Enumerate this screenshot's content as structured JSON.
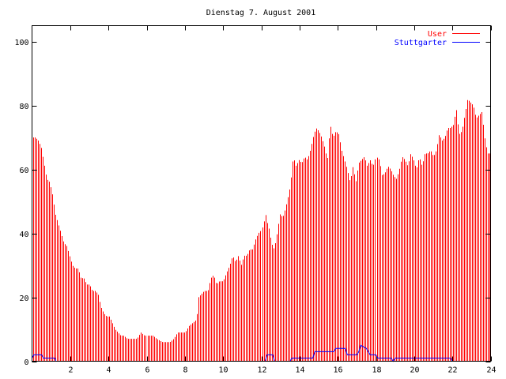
{
  "chart_data": {
    "type": "bar",
    "title": "Dienstag 7. August 2001",
    "xlabel": "",
    "ylabel": "",
    "xlim": [
      0,
      24
    ],
    "ylim": [
      0,
      105
    ],
    "xticks": [
      2,
      4,
      6,
      8,
      10,
      12,
      14,
      16,
      18,
      20,
      22,
      24
    ],
    "yticks": [
      0,
      20,
      40,
      60,
      80,
      100
    ],
    "grid": false,
    "legend_position": "top-right",
    "bar_color": "#ff0000",
    "sample_count": 288,
    "series": [
      {
        "name": "User",
        "color": "#ff0000",
        "style": "impulses",
        "points": [
          [
            0,
            70
          ],
          [
            0.15,
            70
          ],
          [
            0.3,
            69
          ],
          [
            0.45,
            67
          ],
          [
            0.6,
            62
          ],
          [
            0.75,
            57
          ],
          [
            0.9,
            56
          ],
          [
            1.05,
            52
          ],
          [
            1.2,
            46
          ],
          [
            1.35,
            43
          ],
          [
            1.5,
            40
          ],
          [
            1.65,
            37
          ],
          [
            1.8,
            36
          ],
          [
            1.95,
            33
          ],
          [
            2.1,
            30
          ],
          [
            2.25,
            29
          ],
          [
            2.4,
            29
          ],
          [
            2.55,
            26
          ],
          [
            2.7,
            26
          ],
          [
            2.85,
            24
          ],
          [
            3.0,
            24
          ],
          [
            3.15,
            22
          ],
          [
            3.3,
            22
          ],
          [
            3.45,
            21
          ],
          [
            3.6,
            17
          ],
          [
            3.75,
            15
          ],
          [
            3.9,
            14
          ],
          [
            4.05,
            14
          ],
          [
            4.2,
            12
          ],
          [
            4.35,
            10
          ],
          [
            4.5,
            9
          ],
          [
            4.65,
            8
          ],
          [
            4.8,
            8
          ],
          [
            5.0,
            7
          ],
          [
            5.5,
            7
          ],
          [
            5.6,
            8
          ],
          [
            5.7,
            9
          ],
          [
            5.9,
            8
          ],
          [
            6.3,
            8
          ],
          [
            6.5,
            7
          ],
          [
            6.8,
            6
          ],
          [
            7.2,
            6
          ],
          [
            7.4,
            7
          ],
          [
            7.6,
            9
          ],
          [
            7.8,
            9
          ],
          [
            8.0,
            9
          ],
          [
            8.2,
            11
          ],
          [
            8.4,
            12
          ],
          [
            8.6,
            13
          ],
          [
            8.7,
            20
          ],
          [
            8.85,
            21
          ],
          [
            9.0,
            22
          ],
          [
            9.2,
            22
          ],
          [
            9.35,
            26
          ],
          [
            9.5,
            27
          ],
          [
            9.65,
            24
          ],
          [
            9.8,
            25
          ],
          [
            10.0,
            25
          ],
          [
            10.2,
            28
          ],
          [
            10.35,
            30
          ],
          [
            10.5,
            33
          ],
          [
            10.65,
            31
          ],
          [
            10.8,
            33
          ],
          [
            10.95,
            30
          ],
          [
            11.1,
            33
          ],
          [
            11.25,
            33
          ],
          [
            11.4,
            35
          ],
          [
            11.55,
            35
          ],
          [
            11.7,
            38
          ],
          [
            11.85,
            40
          ],
          [
            12.0,
            41
          ],
          [
            12.1,
            43
          ],
          [
            12.2,
            46
          ],
          [
            12.3,
            43
          ],
          [
            12.4,
            41
          ],
          [
            12.5,
            37
          ],
          [
            12.65,
            35
          ],
          [
            12.8,
            40
          ],
          [
            12.95,
            46
          ],
          [
            13.1,
            45
          ],
          [
            13.25,
            48
          ],
          [
            13.4,
            52
          ],
          [
            13.5,
            55
          ],
          [
            13.65,
            64
          ],
          [
            13.8,
            61
          ],
          [
            13.95,
            63
          ],
          [
            14.1,
            62
          ],
          [
            14.25,
            64
          ],
          [
            14.4,
            63
          ],
          [
            14.55,
            66
          ],
          [
            14.7,
            70
          ],
          [
            14.85,
            73
          ],
          [
            15.0,
            72
          ],
          [
            15.15,
            70
          ],
          [
            15.3,
            67
          ],
          [
            15.45,
            63
          ],
          [
            15.6,
            74
          ],
          [
            15.75,
            70
          ],
          [
            15.9,
            72
          ],
          [
            16.05,
            71
          ],
          [
            16.2,
            66
          ],
          [
            16.35,
            63
          ],
          [
            16.5,
            60
          ],
          [
            16.65,
            56
          ],
          [
            16.8,
            61
          ],
          [
            16.95,
            56
          ],
          [
            17.1,
            62
          ],
          [
            17.25,
            63
          ],
          [
            17.4,
            64
          ],
          [
            17.55,
            61
          ],
          [
            17.7,
            63
          ],
          [
            17.85,
            61
          ],
          [
            18.0,
            64
          ],
          [
            18.15,
            63
          ],
          [
            18.3,
            58
          ],
          [
            18.45,
            59
          ],
          [
            18.6,
            61
          ],
          [
            18.75,
            60
          ],
          [
            18.9,
            58
          ],
          [
            19.05,
            57
          ],
          [
            19.2,
            60
          ],
          [
            19.35,
            64
          ],
          [
            19.5,
            63
          ],
          [
            19.65,
            61
          ],
          [
            19.8,
            65
          ],
          [
            19.95,
            63
          ],
          [
            20.1,
            60
          ],
          [
            20.25,
            64
          ],
          [
            20.4,
            61
          ],
          [
            20.55,
            65
          ],
          [
            20.7,
            65
          ],
          [
            20.85,
            66
          ],
          [
            21.0,
            64
          ],
          [
            21.15,
            66
          ],
          [
            21.3,
            71
          ],
          [
            21.45,
            69
          ],
          [
            21.6,
            70
          ],
          [
            21.75,
            73
          ],
          [
            21.9,
            73
          ],
          [
            22.05,
            74
          ],
          [
            22.2,
            79
          ],
          [
            22.35,
            71
          ],
          [
            22.5,
            72
          ],
          [
            22.65,
            77
          ],
          [
            22.8,
            82
          ],
          [
            22.95,
            81
          ],
          [
            23.1,
            80
          ],
          [
            23.25,
            76
          ],
          [
            23.4,
            77
          ],
          [
            23.55,
            78
          ],
          [
            23.7,
            70
          ],
          [
            23.85,
            65
          ],
          [
            24,
            65
          ]
        ]
      },
      {
        "name": "Stuttgarter",
        "color": "#0000ff",
        "style": "line",
        "points": [
          [
            0,
            1
          ],
          [
            0.1,
            2
          ],
          [
            0.5,
            2
          ],
          [
            0.6,
            1
          ],
          [
            1.2,
            1
          ],
          [
            1.25,
            0
          ],
          [
            12.2,
            0
          ],
          [
            12.3,
            2
          ],
          [
            12.6,
            2
          ],
          [
            12.7,
            0
          ],
          [
            13.5,
            0
          ],
          [
            13.6,
            1
          ],
          [
            14.7,
            1
          ],
          [
            14.8,
            3
          ],
          [
            15.8,
            3
          ],
          [
            15.9,
            4
          ],
          [
            16.4,
            4
          ],
          [
            16.5,
            2
          ],
          [
            17.0,
            2
          ],
          [
            17.1,
            3
          ],
          [
            17.2,
            5
          ],
          [
            17.5,
            4
          ],
          [
            17.7,
            2
          ],
          [
            18.0,
            2
          ],
          [
            18.1,
            1
          ],
          [
            18.8,
            1
          ],
          [
            18.9,
            0
          ],
          [
            19.0,
            1
          ],
          [
            21.9,
            1
          ],
          [
            22.0,
            0
          ],
          [
            24,
            0
          ]
        ]
      }
    ]
  }
}
